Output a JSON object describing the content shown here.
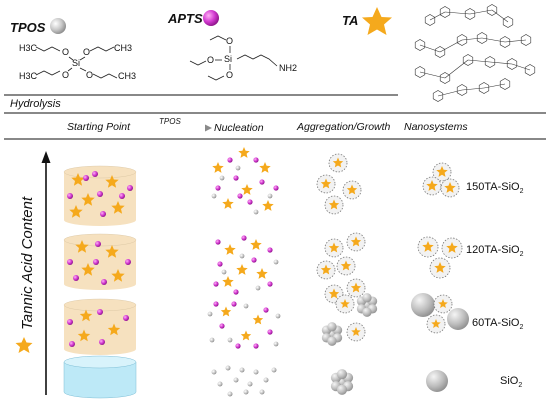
{
  "reagents": {
    "tpos": {
      "label": "TPOS",
      "color": "#c8c8c8"
    },
    "apts": {
      "label": "APTS",
      "color": "#d23ad0"
    },
    "ta": {
      "label": "TA",
      "color": "#f5a91c"
    }
  },
  "formula": {
    "tpos": {
      "ch3": "CH3",
      "h3c": "H3C",
      "o": "O",
      "si": "Si"
    },
    "apts": {
      "o": "O",
      "si": "Si",
      "nh2": "NH2"
    }
  },
  "process": {
    "hydrolysis_label": "Hydrolysis",
    "headers": {
      "starting_point": "Starting Point",
      "arrow_label": "TPOS",
      "nucleation": "Nucleation",
      "aggregation": "Aggregation/Growth",
      "nanosystems": "Nanosystems"
    },
    "axis_label": "Tannic Acid Content"
  },
  "rows": [
    {
      "label": "150TA-SiO",
      "sub": "2"
    },
    {
      "label": "120TA-SiO",
      "sub": "2"
    },
    {
      "label": "60TA-SiO",
      "sub": "2"
    },
    {
      "label": "SiO",
      "sub": "2"
    }
  ],
  "colors": {
    "cylinder_fill": "#f6e1bf",
    "water_fill": "#bde9f7",
    "line": "#222222"
  }
}
